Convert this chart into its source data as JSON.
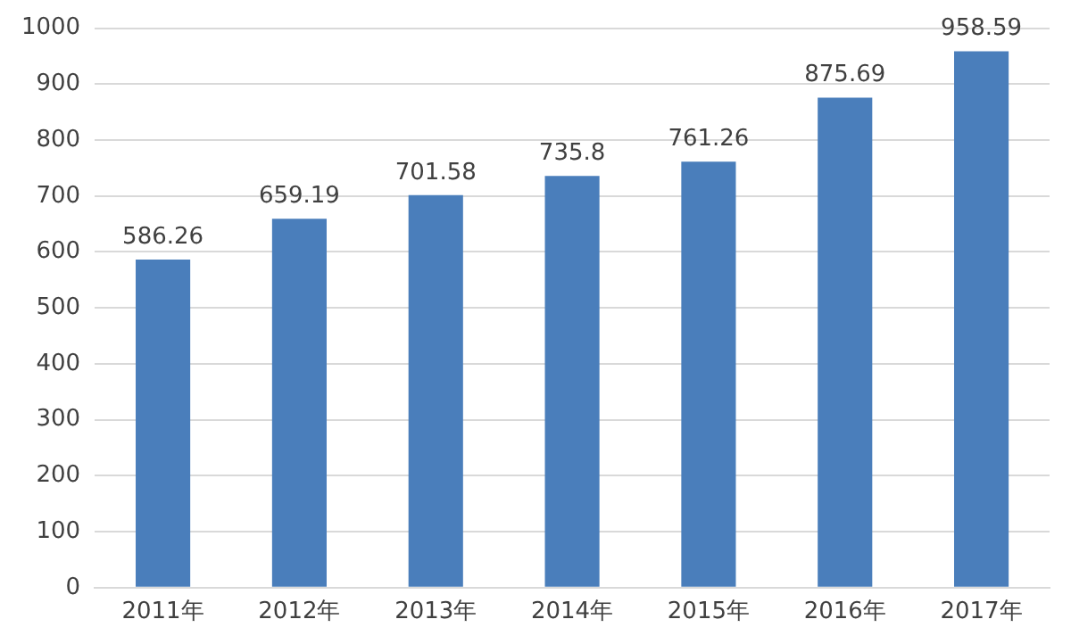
{
  "chart_data": {
    "type": "bar",
    "categories": [
      "2011年",
      "2012年",
      "2013年",
      "2014年",
      "2015年",
      "2016年",
      "2017年"
    ],
    "values": [
      586.26,
      659.19,
      701.58,
      735.8,
      761.26,
      875.69,
      958.59
    ],
    "color": "#4a7ebb",
    "ylim": [
      0,
      1000
    ],
    "yticks": [
      0,
      100,
      200,
      300,
      400,
      500,
      600,
      700,
      800,
      900,
      1000
    ],
    "grid": "y",
    "data_labels": true
  }
}
